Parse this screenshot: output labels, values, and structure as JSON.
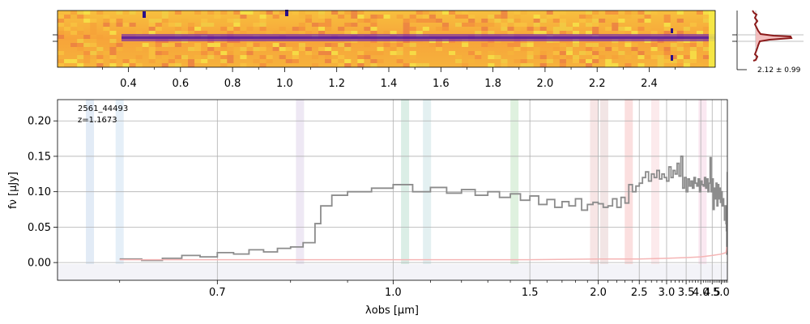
{
  "chart_data": [
    {
      "type": "heatmap",
      "panel": "2D spectrum",
      "colormap": "plasma",
      "top_axis_ticks": [
        "0.4",
        "0.6",
        "0.8",
        "1.0",
        "1.2",
        "1.4",
        "1.6",
        "1.8",
        "2.0",
        "2.2",
        "2.4"
      ],
      "trace_profile_label": "2.12 ± 0.99",
      "colors": {
        "background": "#f7a43a",
        "trace": "#7b2fa8",
        "trace_core": "#4b13a0",
        "bright": "#f5f048",
        "masked": "#2a0f8a",
        "profile_line": "#8b1a1a",
        "profile_fill": "#f2b8b8"
      }
    },
    {
      "type": "line",
      "panel": "1D spectrum",
      "annotations": [
        "2561_44493",
        "z=1.1673"
      ],
      "xlabel": "λobs [μm]",
      "ylabel": "fν [μJy]",
      "xlim": [
        0.55,
        5.4
      ],
      "ylim": [
        -0.025,
        0.23
      ],
      "grid": true,
      "x_ticks": [
        {
          "value": 0.7,
          "label": "0.7"
        },
        {
          "value": 1.0,
          "label": "1.0"
        },
        {
          "value": 1.5,
          "label": "1.5"
        },
        {
          "value": 2.0,
          "label": "2.0"
        },
        {
          "value": 2.5,
          "label": "2.5"
        },
        {
          "value": 3.0,
          "label": "3.0"
        },
        {
          "value": 3.5,
          "label": "3.5"
        },
        {
          "value": 4.0,
          "label": "4.0"
        },
        {
          "value": 4.5,
          "label": "4.5"
        },
        {
          "value": 5.0,
          "label": "5.0"
        }
      ],
      "y_ticks": [
        {
          "value": 0.0,
          "label": "0.00"
        },
        {
          "value": 0.05,
          "label": "0.05"
        },
        {
          "value": 0.1,
          "label": "0.10"
        },
        {
          "value": 0.15,
          "label": "0.15"
        },
        {
          "value": 0.2,
          "label": "0.20"
        }
      ],
      "line_bands": [
        {
          "x": 0.575,
          "color": "#dfe9f5"
        },
        {
          "x": 0.6,
          "color": "#e2edf7"
        },
        {
          "x": 0.815,
          "color": "#ece6f3"
        },
        {
          "x": 1.03,
          "color": "#d7ece3"
        },
        {
          "x": 1.09,
          "color": "#e0eef0"
        },
        {
          "x": 1.42,
          "color": "#dcefdc"
        },
        {
          "x": 1.96,
          "color": "#f6e2e2"
        },
        {
          "x": 2.06,
          "color": "#f1e2e2"
        },
        {
          "x": 2.35,
          "color": "#fbdcdc"
        },
        {
          "x": 2.77,
          "color": "#fce8ea"
        },
        {
          "x": 4.07,
          "color": "#f9e6f0"
        }
      ],
      "series": [
        {
          "color": "#8c8c8c",
          "x": [
            0.6,
            0.62,
            0.64,
            0.66,
            0.68,
            0.7,
            0.72,
            0.74,
            0.76,
            0.78,
            0.8,
            0.82,
            0.84,
            0.85,
            0.87,
            0.9,
            0.95,
            1.0,
            1.05,
            1.1,
            1.15,
            1.2,
            1.25,
            1.3,
            1.35,
            1.4,
            1.45,
            1.5,
            1.55,
            1.6,
            1.65,
            1.7,
            1.75,
            1.8,
            1.85,
            1.9,
            1.95,
            2.0,
            2.05,
            2.1,
            2.15,
            2.2,
            2.25,
            2.3,
            2.35,
            2.4,
            2.45,
            2.5,
            2.55,
            2.6,
            2.65,
            2.7,
            2.75,
            2.8,
            2.85,
            2.9,
            2.95,
            3.0,
            3.05,
            3.1,
            3.15,
            3.2,
            3.25,
            3.3,
            3.35,
            3.4,
            3.45,
            3.5,
            3.55,
            3.6,
            3.65,
            3.7,
            3.75,
            3.8,
            3.85,
            3.9,
            3.95,
            4.0,
            4.05,
            4.1,
            4.15,
            4.2,
            4.25,
            4.3,
            4.35,
            4.4,
            4.45,
            4.5,
            4.55,
            4.6,
            4.65,
            4.7,
            4.75,
            4.8,
            4.85,
            4.9,
            4.95,
            5.0,
            5.05,
            5.1,
            5.15,
            5.2,
            5.25,
            5.3,
            5.33,
            5.36,
            5.4
          ],
          "y": [
            0.005,
            0.003,
            0.006,
            0.01,
            0.008,
            0.014,
            0.012,
            0.018,
            0.015,
            0.02,
            0.022,
            0.028,
            0.055,
            0.08,
            0.095,
            0.1,
            0.105,
            0.11,
            0.1,
            0.106,
            0.098,
            0.103,
            0.095,
            0.1,
            0.092,
            0.097,
            0.088,
            0.094,
            0.082,
            0.089,
            0.078,
            0.086,
            0.08,
            0.09,
            0.074,
            0.082,
            0.085,
            0.083,
            0.078,
            0.08,
            0.09,
            0.078,
            0.092,
            0.084,
            0.11,
            0.1,
            0.108,
            0.112,
            0.12,
            0.128,
            0.115,
            0.125,
            0.12,
            0.13,
            0.118,
            0.125,
            0.12,
            0.115,
            0.135,
            0.12,
            0.13,
            0.125,
            0.14,
            0.122,
            0.15,
            0.105,
            0.12,
            0.1,
            0.118,
            0.108,
            0.115,
            0.105,
            0.12,
            0.112,
            0.108,
            0.118,
            0.1,
            0.115,
            0.11,
            0.108,
            0.12,
            0.105,
            0.118,
            0.1,
            0.112,
            0.148,
            0.1,
            0.118,
            0.075,
            0.105,
            0.09,
            0.112,
            0.08,
            0.11,
            0.09,
            0.105,
            0.085,
            0.1,
            0.08,
            0.09,
            0.08,
            0.06,
            0.08,
            0.055,
            0.045,
            0.012,
            0.128
          ]
        },
        {
          "color": "#f5b5b5",
          "x": [
            0.6,
            1.0,
            1.5,
            2.0,
            2.5,
            3.0,
            3.5,
            4.0,
            4.5,
            5.0,
            5.3,
            5.36
          ],
          "y": [
            0.004,
            0.004,
            0.004,
            0.005,
            0.005,
            0.006,
            0.007,
            0.008,
            0.01,
            0.012,
            0.014,
            0.022
          ]
        }
      ]
    }
  ]
}
